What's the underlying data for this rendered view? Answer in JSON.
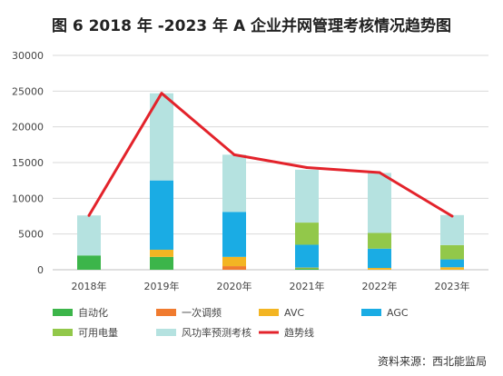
{
  "chart_data": {
    "type": "bar",
    "title": "图 6  2018 年 -2023 年 A 企业并网管理考核情况趋势图",
    "categories": [
      "2018年",
      "2019年",
      "2020年",
      "2021年",
      "2022年",
      "2023年"
    ],
    "ylim": [
      0,
      30000
    ],
    "yticks": [
      0,
      5000,
      10000,
      15000,
      20000,
      25000,
      30000
    ],
    "ytick_labels": [
      "0",
      "5000",
      "10000",
      "15000",
      "20000",
      "25000",
      "30000"
    ],
    "stacked": true,
    "grid": "horizontal",
    "legend_position": "bottom",
    "series": [
      {
        "name": "自动化",
        "kind": "bar",
        "color": "#3cb54a",
        "values": [
          2000,
          1800,
          0,
          200,
          0,
          0
        ]
      },
      {
        "name": "一次调频",
        "kind": "bar",
        "color": "#f07b2f",
        "values": [
          0,
          0,
          500,
          0,
          0,
          0
        ]
      },
      {
        "name": "AVC",
        "kind": "bar",
        "color": "#f3b523",
        "values": [
          0,
          1000,
          1300,
          100,
          250,
          350
        ]
      },
      {
        "name": "AGC",
        "kind": "bar",
        "color": "#1aace4",
        "values": [
          0,
          9700,
          6300,
          3200,
          2700,
          1100
        ]
      },
      {
        "name": "可用电量",
        "kind": "bar",
        "color": "#92c84a",
        "values": [
          0,
          0,
          0,
          3100,
          2200,
          2000
        ]
      },
      {
        "name": "风功率预测考核",
        "kind": "bar",
        "color": "#b5e2e0",
        "values": [
          5600,
          12200,
          8000,
          7400,
          8400,
          4200
        ]
      },
      {
        "name": "趋势线",
        "kind": "line",
        "color": "#e3232b",
        "values": [
          7600,
          24700,
          16100,
          14300,
          13600,
          7500
        ]
      }
    ]
  },
  "source": "资料来源：西北能监局"
}
